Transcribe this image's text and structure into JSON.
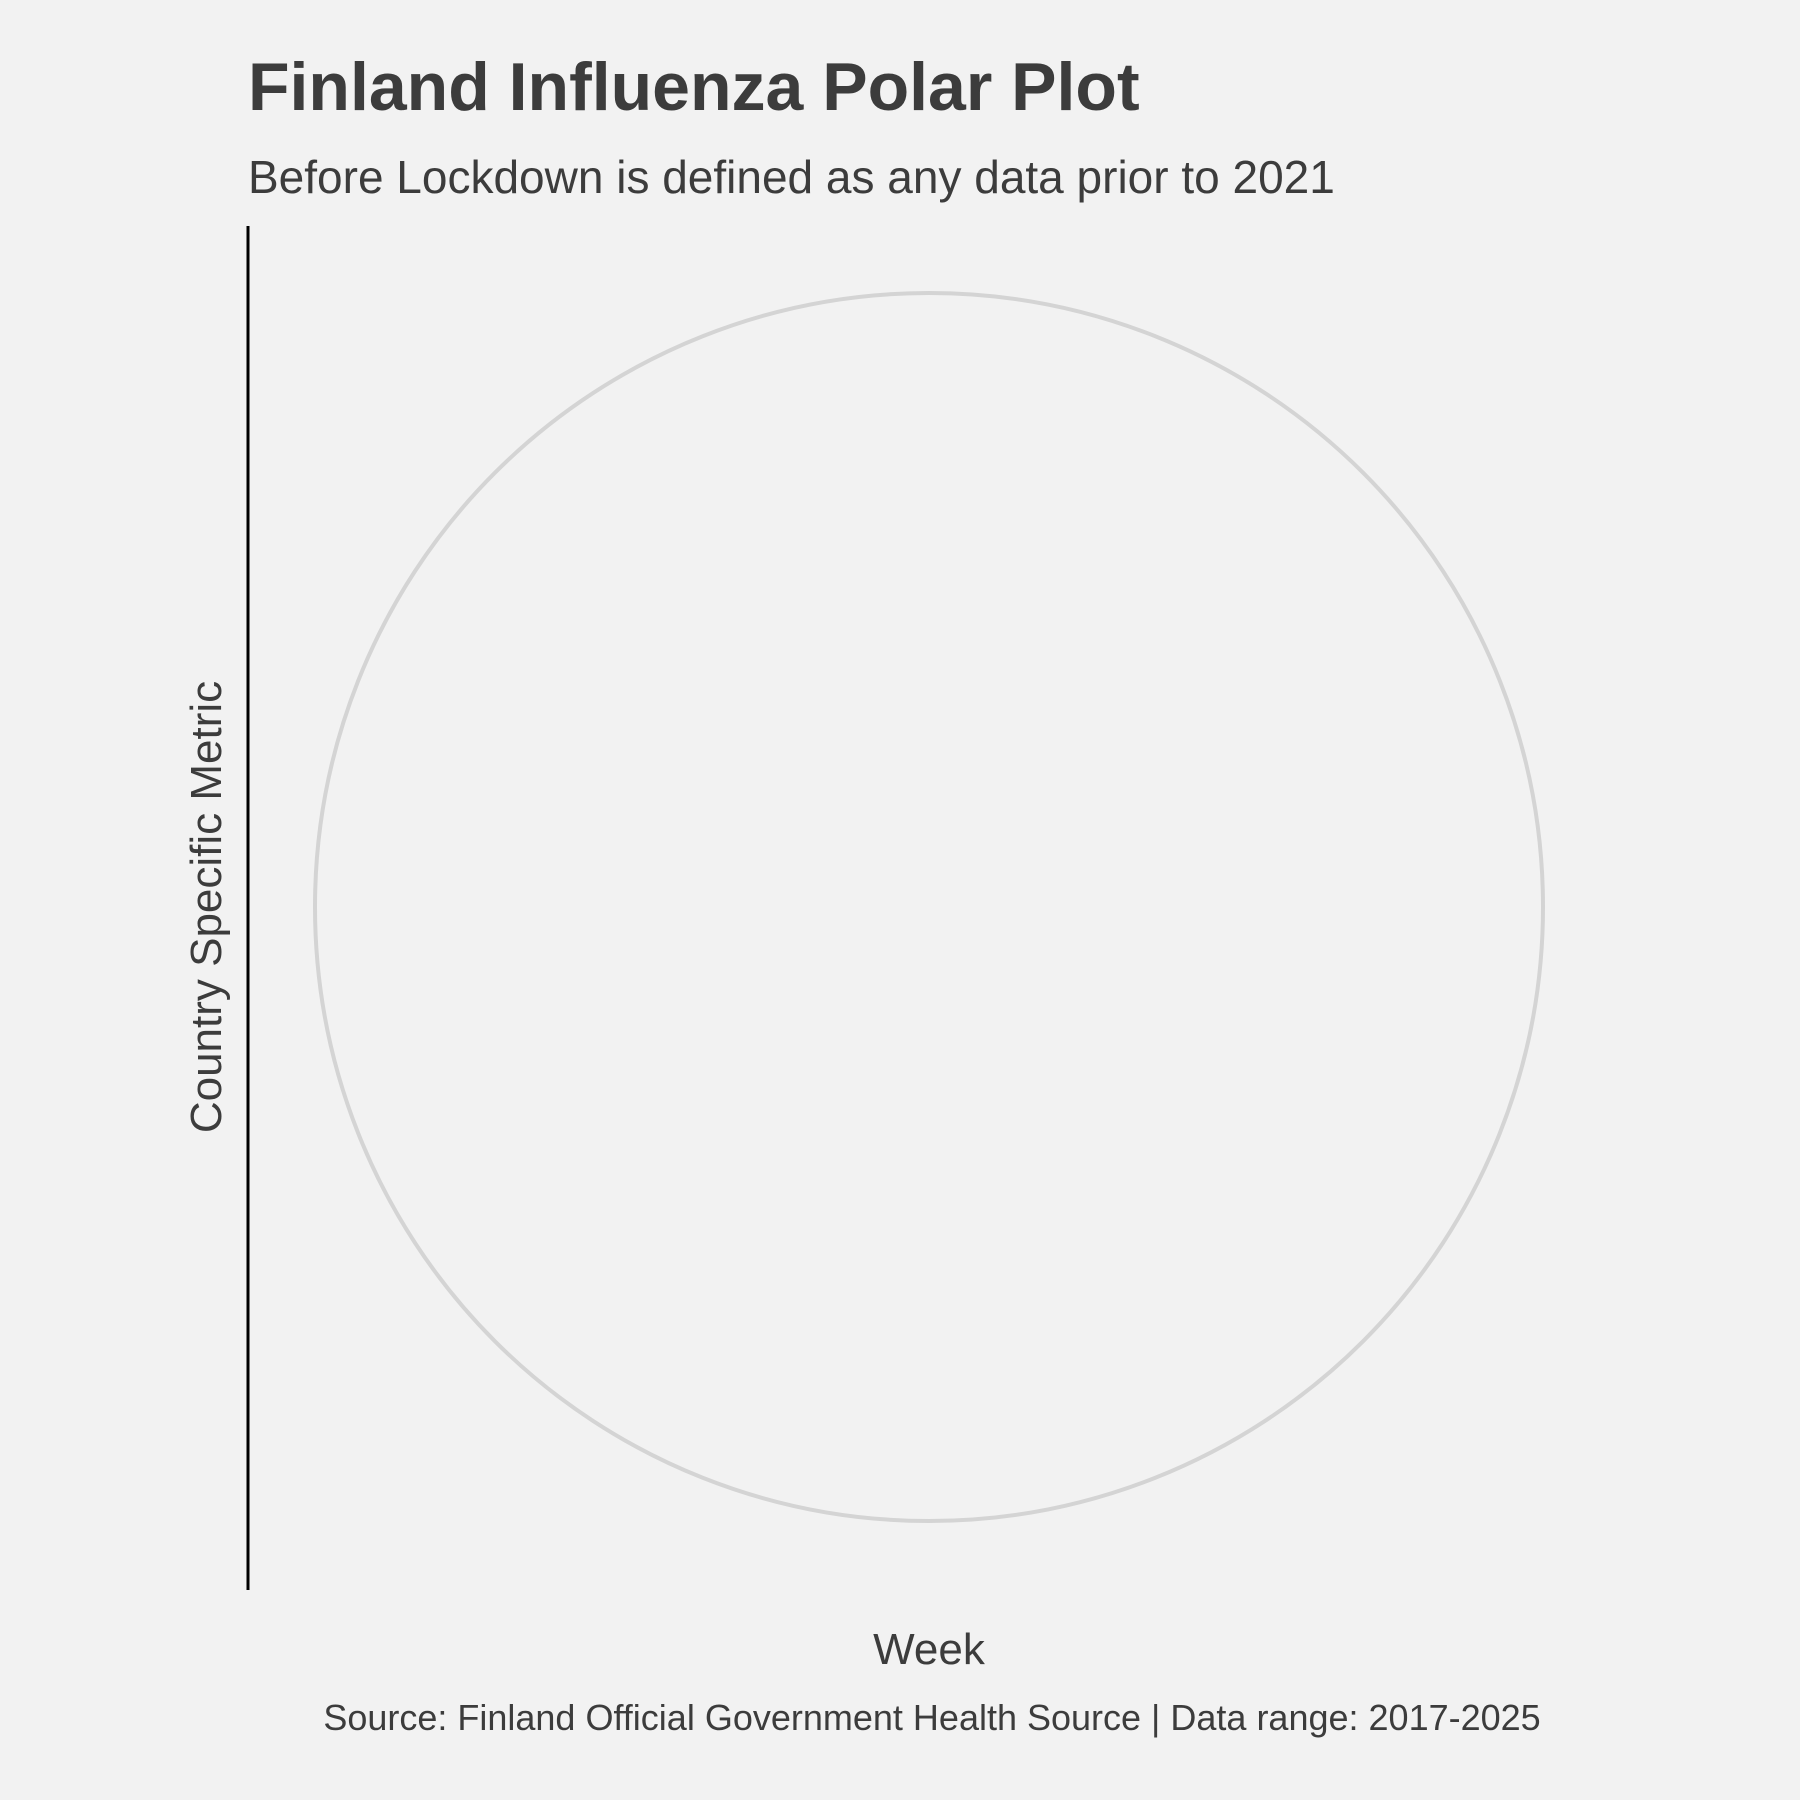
{
  "chart_data": {
    "type": "polar",
    "title": "Finland Influenza Polar Plot",
    "subtitle": "Before Lockdown is defined as any data prior to 2021",
    "xlabel": "Week",
    "ylabel": "Country Specific Metric",
    "caption": "Source: Finland Official Government Health Source | Data range: 2017-2025",
    "series": [],
    "grid": true,
    "legend": "none",
    "colors": {
      "background": "#f2f2f2",
      "grid_circle": "#d4d4d4",
      "axis_line": "#000000",
      "text": "#3c3c3c"
    }
  }
}
